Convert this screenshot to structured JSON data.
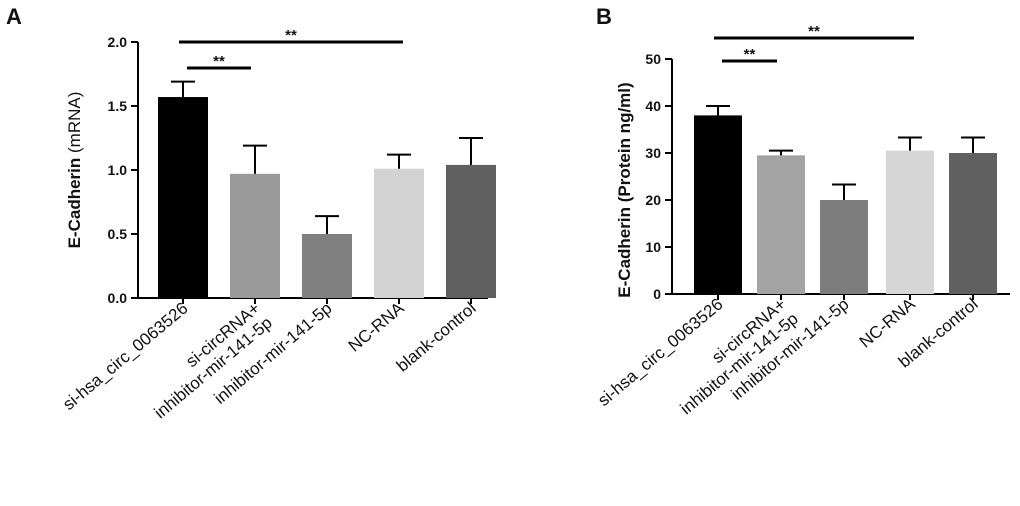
{
  "chart_data": [
    {
      "type": "bar",
      "panel": "A",
      "title": "",
      "xlabel": "",
      "ylabel_main": "E-Cadherin",
      "ylabel_unit": "(mRNA)",
      "categories": [
        "si-hsa_circ_0063526",
        "si-circRNA+ inhibitor-mir-141-5p",
        "inhibitor-mir-141-5p",
        "NC-RNA",
        "blank-control"
      ],
      "category_lines": [
        [
          "si-hsa_circ_0063526"
        ],
        [
          "si-circRNA+",
          "inhibitor-mir-141-5p"
        ],
        [
          "inhibitor-mir-141-5p"
        ],
        [
          "NC-RNA"
        ],
        [
          "blank-control"
        ]
      ],
      "values": [
        1.57,
        0.97,
        0.5,
        1.01,
        1.04
      ],
      "errors": [
        0.12,
        0.22,
        0.14,
        0.11,
        0.21
      ],
      "colors": [
        "#000000",
        "#9a9a9a",
        "#808080",
        "#d3d3d3",
        "#5f5f5f"
      ],
      "ylim": [
        0,
        2.0
      ],
      "yticks": [
        "0.0",
        "0.5",
        "1.0",
        "1.5",
        "2.0"
      ],
      "significance": [
        {
          "from": 0,
          "to": 1,
          "label": "**"
        },
        {
          "from": 0,
          "to": 3,
          "label": "**"
        }
      ]
    },
    {
      "type": "bar",
      "panel": "B",
      "title": "",
      "xlabel": "",
      "ylabel_main": "E-Cadherin",
      "ylabel_unit": "(Protein ng/ml)",
      "categories": [
        "si-hsa_circ_0063526",
        "si-circRNA+ inhibitor-mir-141-5p",
        "inhibitor-mir-141-5p",
        "NC-RNA",
        "blank-control"
      ],
      "category_lines": [
        [
          "si-hsa_circ_0063526"
        ],
        [
          "si-circRNA+",
          "inhibitor-mir-141-5p"
        ],
        [
          "inhibitor-mir-141-5p"
        ],
        [
          "NC-RNA"
        ],
        [
          "blank-control"
        ]
      ],
      "values": [
        38,
        29.5,
        20,
        30.5,
        30
      ],
      "errors": [
        2.0,
        1.0,
        3.3,
        2.8,
        3.3
      ],
      "colors": [
        "#000000",
        "#a3a3a3",
        "#7d7d7d",
        "#d6d6d6",
        "#606060"
      ],
      "ylim": [
        0,
        50
      ],
      "yticks": [
        "0",
        "10",
        "20",
        "30",
        "40",
        "50"
      ],
      "significance": [
        {
          "from": 0,
          "to": 1,
          "label": "**"
        },
        {
          "from": 0,
          "to": 3,
          "label": "**"
        }
      ]
    }
  ]
}
